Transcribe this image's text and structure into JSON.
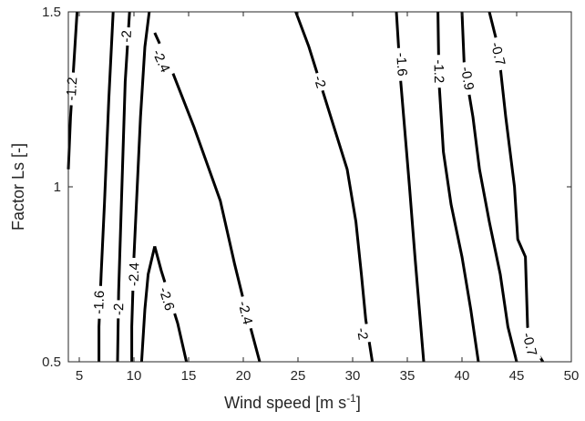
{
  "chart_data": {
    "type": "contour",
    "xlabel": "Wind speed [m s",
    "xlabel_sup": "-1",
    "xlabel_close": "]",
    "ylabel": "Factor Ls [-]",
    "xlim": [
      4,
      50
    ],
    "ylim": [
      0.5,
      1.5
    ],
    "xticks": [
      5,
      10,
      15,
      20,
      25,
      30,
      35,
      40,
      45,
      50
    ],
    "yticks": [
      0.5,
      1,
      1.5
    ],
    "ytick_labels": [
      "0.5",
      "1",
      "1.5"
    ],
    "grid": false,
    "contours": [
      {
        "level": "-1.2",
        "points": [
          [
            4.0,
            1.05
          ],
          [
            4.2,
            1.2
          ],
          [
            4.5,
            1.35
          ],
          [
            4.8,
            1.5
          ]
        ],
        "labels": [
          {
            "x": 4.3,
            "y": 1.28,
            "text": "-1.2"
          }
        ]
      },
      {
        "level": "-1.6",
        "points": [
          [
            6.8,
            0.5
          ],
          [
            6.8,
            0.6
          ],
          [
            7.0,
            0.75
          ],
          [
            7.3,
            0.95
          ],
          [
            7.7,
            1.25
          ],
          [
            8.1,
            1.5
          ]
        ],
        "labels": [
          {
            "x": 6.8,
            "y": 0.67,
            "text": "-1.6"
          }
        ]
      },
      {
        "level": "-2",
        "points": [
          [
            8.5,
            0.5
          ],
          [
            8.6,
            0.7
          ],
          [
            8.8,
            0.9
          ],
          [
            9.0,
            1.1
          ],
          [
            9.2,
            1.3
          ],
          [
            9.6,
            1.5
          ]
        ],
        "labels": [
          {
            "x": 8.6,
            "y": 0.65,
            "text": "-2"
          },
          {
            "x": 9.3,
            "y": 1.43,
            "text": "-2"
          }
        ]
      },
      {
        "level": "-2.4",
        "points": [
          [
            9.8,
            0.5
          ],
          [
            9.8,
            0.6
          ],
          [
            10.0,
            0.8
          ],
          [
            10.3,
            1.0
          ],
          [
            10.6,
            1.2
          ],
          [
            11.0,
            1.4
          ],
          [
            11.4,
            1.5
          ]
        ],
        "labels": [
          {
            "x": 10.0,
            "y": 0.75,
            "text": "-2.4"
          }
        ]
      },
      {
        "level": "-2.4",
        "points": [
          [
            11.9,
            1.44
          ],
          [
            13.5,
            1.33
          ],
          [
            15.5,
            1.17
          ],
          [
            17.9,
            0.96
          ],
          [
            19.2,
            0.78
          ],
          [
            20.3,
            0.64
          ],
          [
            21.5,
            0.5
          ]
        ],
        "labels": [
          {
            "x": 12.5,
            "y": 1.36,
            "text": "-2.4"
          },
          {
            "x": 20.2,
            "y": 0.64,
            "text": "-2.4"
          }
        ]
      },
      {
        "level": "-2.6",
        "points": [
          [
            11.9,
            0.83
          ],
          [
            11.3,
            0.75
          ],
          [
            11.0,
            0.65
          ],
          [
            10.8,
            0.55
          ],
          [
            10.7,
            0.5
          ]
        ],
        "labels": []
      },
      {
        "level": "-2.6",
        "points": [
          [
            11.9,
            0.83
          ],
          [
            12.5,
            0.76
          ],
          [
            13.2,
            0.69
          ],
          [
            14.0,
            0.61
          ],
          [
            14.8,
            0.5
          ]
        ],
        "labels": [
          {
            "x": 13.0,
            "y": 0.68,
            "text": "-2.6"
          }
        ]
      },
      {
        "level": "-2",
        "points": [
          [
            24.8,
            1.5
          ],
          [
            26.0,
            1.4
          ],
          [
            27.5,
            1.25
          ],
          [
            29.5,
            1.05
          ],
          [
            30.3,
            0.9
          ],
          [
            30.8,
            0.75
          ],
          [
            31.2,
            0.62
          ],
          [
            31.8,
            0.5
          ]
        ],
        "labels": [
          {
            "x": 27.0,
            "y": 1.3,
            "text": "-2"
          },
          {
            "x": 30.9,
            "y": 0.58,
            "text": "-2"
          }
        ]
      },
      {
        "level": "-1.6",
        "points": [
          [
            34.0,
            1.5
          ],
          [
            34.4,
            1.3
          ],
          [
            35.2,
            1.0
          ],
          [
            35.7,
            0.8
          ],
          [
            36.1,
            0.65
          ],
          [
            36.5,
            0.5
          ]
        ],
        "labels": [
          {
            "x": 34.5,
            "y": 1.35,
            "text": "-1.6"
          }
        ]
      },
      {
        "level": "-1.2",
        "points": [
          [
            37.8,
            1.5
          ],
          [
            37.9,
            1.3
          ],
          [
            38.3,
            1.1
          ],
          [
            39.0,
            0.95
          ],
          [
            40.0,
            0.8
          ],
          [
            40.8,
            0.65
          ],
          [
            41.5,
            0.5
          ]
        ],
        "labels": [
          {
            "x": 37.9,
            "y": 1.33,
            "text": "-1.2"
          }
        ]
      },
      {
        "level": "-0.9",
        "points": [
          [
            40.0,
            1.5
          ],
          [
            40.2,
            1.35
          ],
          [
            41.0,
            1.2
          ],
          [
            41.6,
            1.05
          ],
          [
            42.5,
            0.9
          ],
          [
            43.5,
            0.75
          ],
          [
            44.2,
            0.6
          ],
          [
            45.0,
            0.5
          ]
        ],
        "labels": [
          {
            "x": 40.5,
            "y": 1.31,
            "text": "-0.9"
          }
        ]
      },
      {
        "level": "-0.7",
        "points": [
          [
            42.5,
            1.5
          ],
          [
            43.3,
            1.4
          ],
          [
            44.0,
            1.2
          ],
          [
            44.8,
            1.0
          ],
          [
            45.1,
            0.85
          ],
          [
            45.8,
            0.8
          ],
          [
            46.0,
            0.6
          ],
          [
            46.4,
            0.55
          ],
          [
            47.4,
            0.5
          ]
        ],
        "labels": [
          {
            "x": 43.3,
            "y": 1.38,
            "text": "-0.7"
          },
          {
            "x": 46.2,
            "y": 0.55,
            "text": "-0.7"
          }
        ]
      }
    ]
  }
}
